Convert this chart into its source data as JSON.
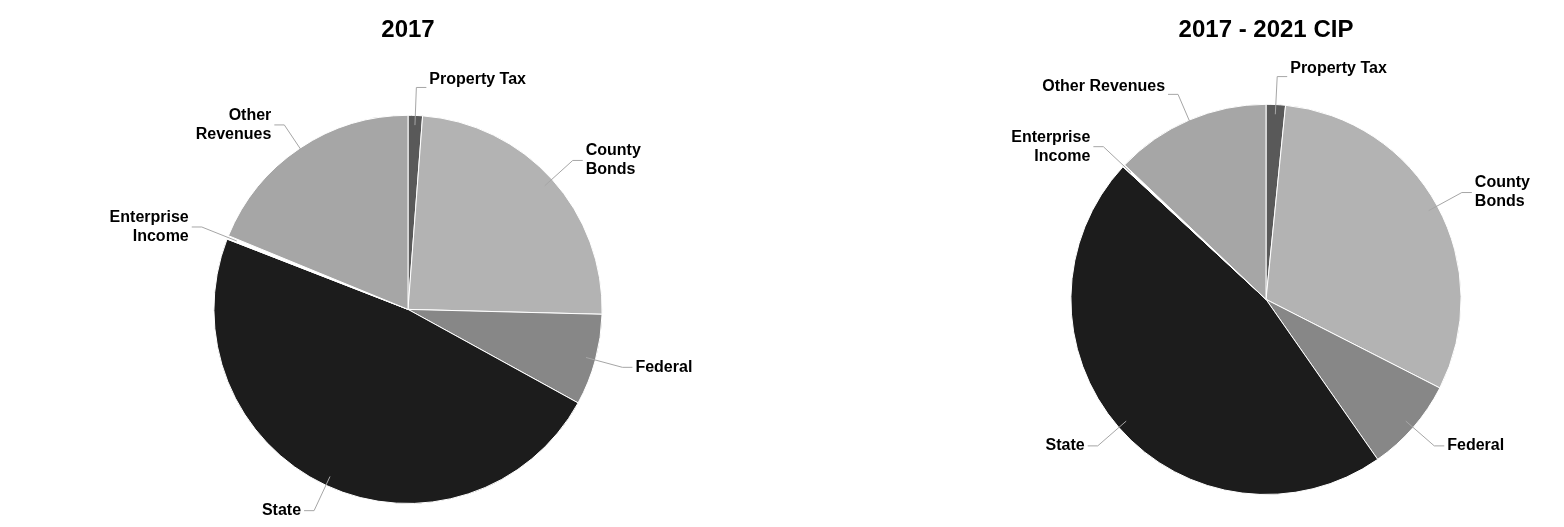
{
  "chart_data": [
    {
      "type": "pie",
      "title": "2017",
      "categories": [
        "Property Tax",
        "County Bonds",
        "Federal",
        "State",
        "Enterprise Income",
        "Other Revenues"
      ],
      "values": [
        1.2,
        24.2,
        7.6,
        47.9,
        0.3,
        18.8
      ],
      "colors": [
        "#595959",
        "#b3b3b3",
        "#878787",
        "#1c1c1c",
        "#ffffff",
        "#a6a6a6"
      ],
      "legend": false
    },
    {
      "type": "pie",
      "title": "2017 - 2021 CIP",
      "categories": [
        "Property Tax",
        "County Bonds",
        "Federal",
        "State",
        "Enterprise Income",
        "Other Revenues"
      ],
      "values": [
        1.6,
        30.9,
        7.8,
        46.6,
        0.2,
        12.9
      ],
      "colors": [
        "#595959",
        "#b3b3b3",
        "#878787",
        "#1c1c1c",
        "#ffffff",
        "#a6a6a6"
      ],
      "legend": false
    }
  ]
}
